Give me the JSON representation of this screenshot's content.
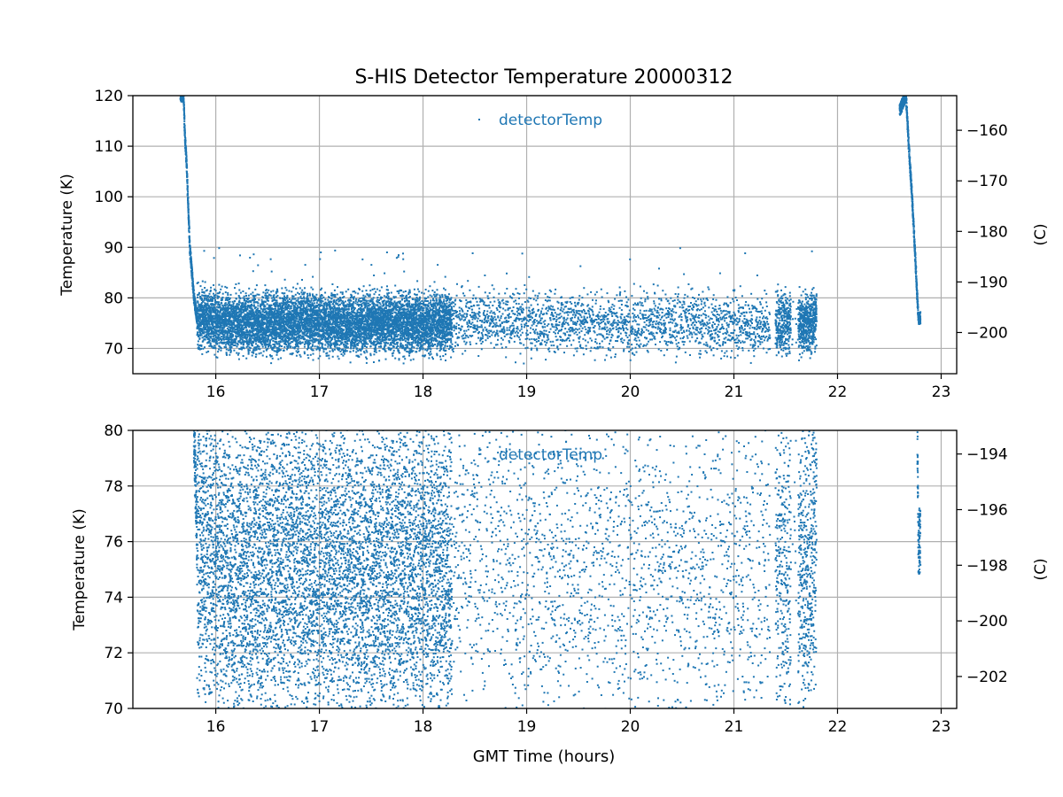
{
  "figure": {
    "title": "S-HIS Detector Temperature 20000312",
    "xlabel": "GMT Time (hours)"
  },
  "colors": {
    "series": "#1f77b4",
    "grid": "#b0b0b0",
    "axes": "#000000",
    "text": "#000000"
  },
  "chart_data": [
    {
      "type": "scatter",
      "title": "S-HIS Detector Temperature 20000312",
      "xlabel": "",
      "ylabel": "Temperature (K)",
      "y2label": "(C)",
      "xlim": [
        15.2,
        23.15
      ],
      "ylim": [
        65,
        120
      ],
      "xticks": [
        16,
        17,
        18,
        19,
        20,
        21,
        22,
        23
      ],
      "yticks": [
        70,
        80,
        90,
        100,
        110,
        120
      ],
      "y2ticks": [
        -160,
        -170,
        -180,
        -190,
        -200
      ],
      "grid": true,
      "legend": "upper-center",
      "series": [
        {
          "name": "detectorTemp",
          "x": [
            15.69,
            15.7,
            15.72,
            15.73,
            15.74,
            15.75,
            15.77,
            15.79,
            15.82,
            16.0,
            16.2,
            16.5,
            16.8,
            17.0,
            17.3,
            17.6,
            17.9,
            18.2,
            18.5,
            18.8,
            19.1,
            19.4,
            19.7,
            20.0,
            20.3,
            20.6,
            20.9,
            21.2,
            21.45,
            21.6,
            21.75,
            22.66,
            22.68,
            22.7,
            22.72,
            22.74,
            22.76,
            22.78
          ],
          "y": [
            120,
            113,
            106,
            100,
            95,
            90,
            85,
            80,
            76,
            75.5,
            75,
            75,
            75.5,
            75,
            75,
            75,
            75,
            75,
            76,
            75.5,
            75,
            75.5,
            75,
            75,
            75,
            75,
            75,
            74.5,
            75,
            75,
            75,
            120,
            113,
            106,
            100,
            92,
            84,
            76
          ]
        }
      ]
    },
    {
      "type": "scatter",
      "xlabel": "GMT Time (hours)",
      "ylabel": "Temperature (K)",
      "y2label": "(C)",
      "xlim": [
        15.2,
        23.15
      ],
      "ylim": [
        70,
        80
      ],
      "xticks": [
        16,
        17,
        18,
        19,
        20,
        21,
        22,
        23
      ],
      "yticks": [
        70,
        72,
        74,
        76,
        78,
        80
      ],
      "y2ticks": [
        -194,
        -196,
        -198,
        -200,
        -202
      ],
      "grid": true,
      "legend": "upper-center",
      "series": [
        {
          "name": "detectorTemp",
          "x": [
            15.82,
            16.0,
            16.2,
            16.5,
            16.8,
            17.0,
            17.3,
            17.6,
            17.9,
            18.2,
            18.5,
            18.8,
            19.1,
            19.4,
            19.7,
            20.0,
            20.3,
            20.6,
            20.9,
            21.2,
            21.45,
            21.6,
            21.75,
            22.78
          ],
          "y": [
            76,
            75.5,
            75,
            75,
            75.5,
            75,
            75,
            75,
            75,
            75,
            76,
            75.5,
            75,
            75.5,
            75,
            75,
            75,
            75,
            75,
            74.5,
            75,
            75,
            75,
            76
          ]
        }
      ]
    }
  ]
}
